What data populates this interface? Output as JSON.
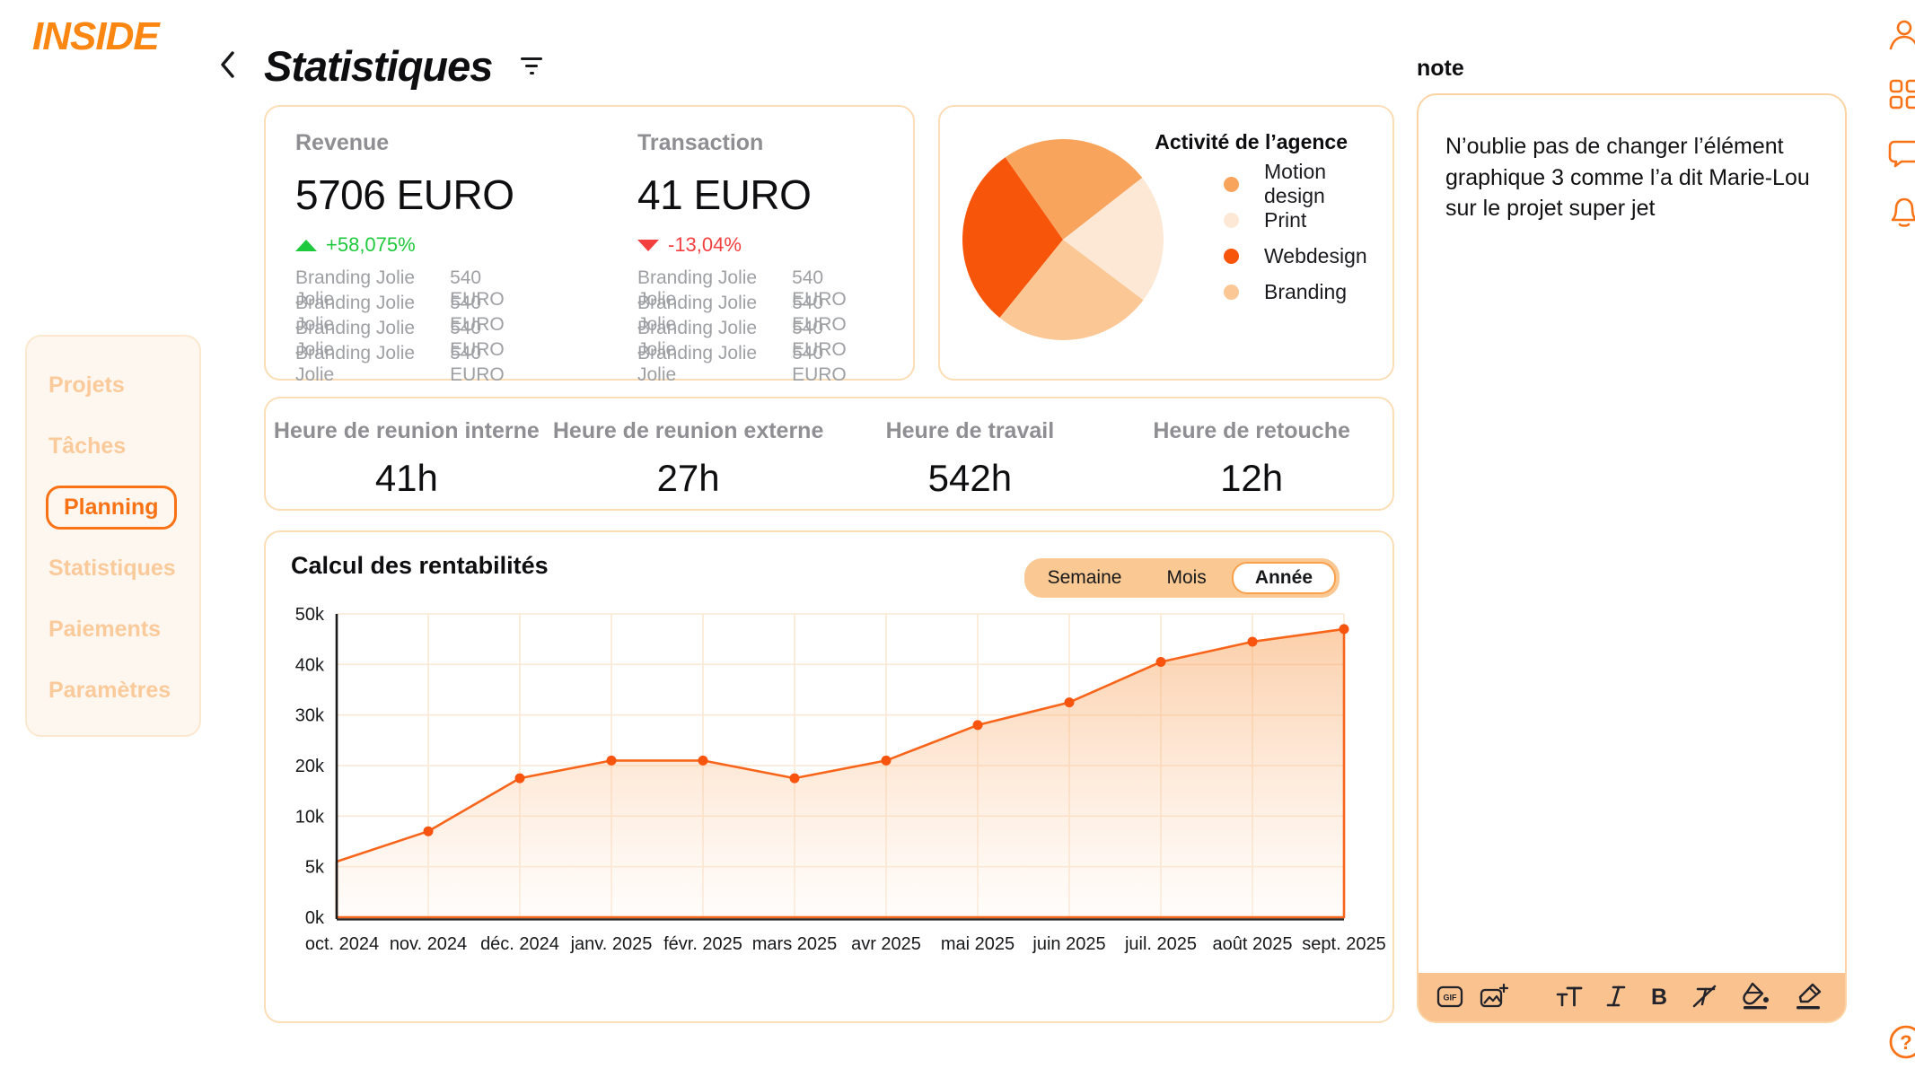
{
  "brand": {
    "logo": "INSIDE"
  },
  "header": {
    "title": "Statistiques"
  },
  "sidebar": {
    "items": [
      {
        "label": "Projets",
        "active": false
      },
      {
        "label": "Tâches",
        "active": false
      },
      {
        "label": "Planning",
        "active": true
      },
      {
        "label": "Statistiques",
        "active": false
      },
      {
        "label": "Paiements",
        "active": false
      },
      {
        "label": "Paramètres",
        "active": false
      }
    ]
  },
  "stats": {
    "revenue": {
      "label": "Revenue",
      "value": "5706 EURO",
      "trend": "+58,075%",
      "trend_dir": "up",
      "rows": [
        {
          "name": "Branding Jolie Jolie",
          "amount": "540 EURO"
        },
        {
          "name": "Branding Jolie Jolie",
          "amount": "540 EURO"
        },
        {
          "name": "Branding Jolie Jolie",
          "amount": "540 EURO"
        },
        {
          "name": "Branding Jolie Jolie",
          "amount": "540 EURO"
        }
      ]
    },
    "transaction": {
      "label": "Transaction",
      "value": "41 EURO",
      "trend": "-13,04%",
      "trend_dir": "down",
      "rows": [
        {
          "name": "Branding Jolie Jolie",
          "amount": "540 EURO"
        },
        {
          "name": "Branding Jolie Jolie",
          "amount": "540 EURO"
        },
        {
          "name": "Branding Jolie Jolie",
          "amount": "540 EURO"
        },
        {
          "name": "Branding Jolie Jolie",
          "amount": "540 EURO"
        }
      ]
    }
  },
  "activity": {
    "title": "Activité de l’agence",
    "legend": [
      {
        "label": "Motion design",
        "color": "#F9A45C"
      },
      {
        "label": "Print",
        "color": "#FCE8D5"
      },
      {
        "label": "Webdesign",
        "color": "#F7560A"
      },
      {
        "label": "Branding",
        "color": "#FBC795"
      }
    ],
    "slices": [
      {
        "label": "Webdesign",
        "from": 219,
        "to": 325,
        "color": "#F7560A"
      },
      {
        "label": "Motion design",
        "from": 325,
        "to": 412,
        "color": "#F9A45C"
      },
      {
        "label": "Print",
        "from": 52,
        "to": 127,
        "color": "#FCE8D5"
      },
      {
        "label": "Branding",
        "from": 127,
        "to": 219,
        "color": "#FBC795"
      }
    ]
  },
  "hours": {
    "items": [
      {
        "label": "Heure de reunion interne",
        "value": "41h"
      },
      {
        "label": "Heure de reunion externe",
        "value": "27h"
      },
      {
        "label": "Heure de travail",
        "value": "542h"
      },
      {
        "label": "Heure de retouche",
        "value": "12h"
      }
    ]
  },
  "chart": {
    "title": "Calcul des rentabilités",
    "toggle": {
      "options": [
        "Semaine",
        "Mois",
        "Année"
      ],
      "active": "Année"
    }
  },
  "chart_data": {
    "type": "area",
    "title": "Calcul des rentabilités",
    "x": [
      "oct. 2024",
      "nov. 2024",
      "déc. 2024",
      "janv. 2025",
      "févr. 2025",
      "mars 2025",
      "avr 2025",
      "mai 2025",
      "juin 2025",
      "juil. 2025",
      "août 2025",
      "sept. 2025"
    ],
    "values_k": [
      5.5,
      8.5,
      17.5,
      21,
      21,
      17.5,
      21,
      28,
      32.5,
      40.5,
      44.5,
      47
    ],
    "y_ticks": [
      {
        "label": "0k",
        "value": 0
      },
      {
        "label": "5k",
        "value": 5
      },
      {
        "label": "10k",
        "value": 10
      },
      {
        "label": "20k",
        "value": 20
      },
      {
        "label": "30k",
        "value": 30
      },
      {
        "label": "40k",
        "value": 40
      },
      {
        "label": "50k",
        "value": 50
      }
    ],
    "line_color": "#F8651A",
    "dot_color": "#F8540E",
    "grid_color": "#FBE8D4",
    "legend_position": "none",
    "grid": true
  },
  "note": {
    "title": "note",
    "body": "N’oublie pas de changer l’élément graphique 3 comme l’a dit Marie-Lou sur le projet super jet",
    "toolbar": {
      "gif_label": "GIF",
      "bold_label": "B"
    }
  },
  "help": {
    "label": "?"
  }
}
